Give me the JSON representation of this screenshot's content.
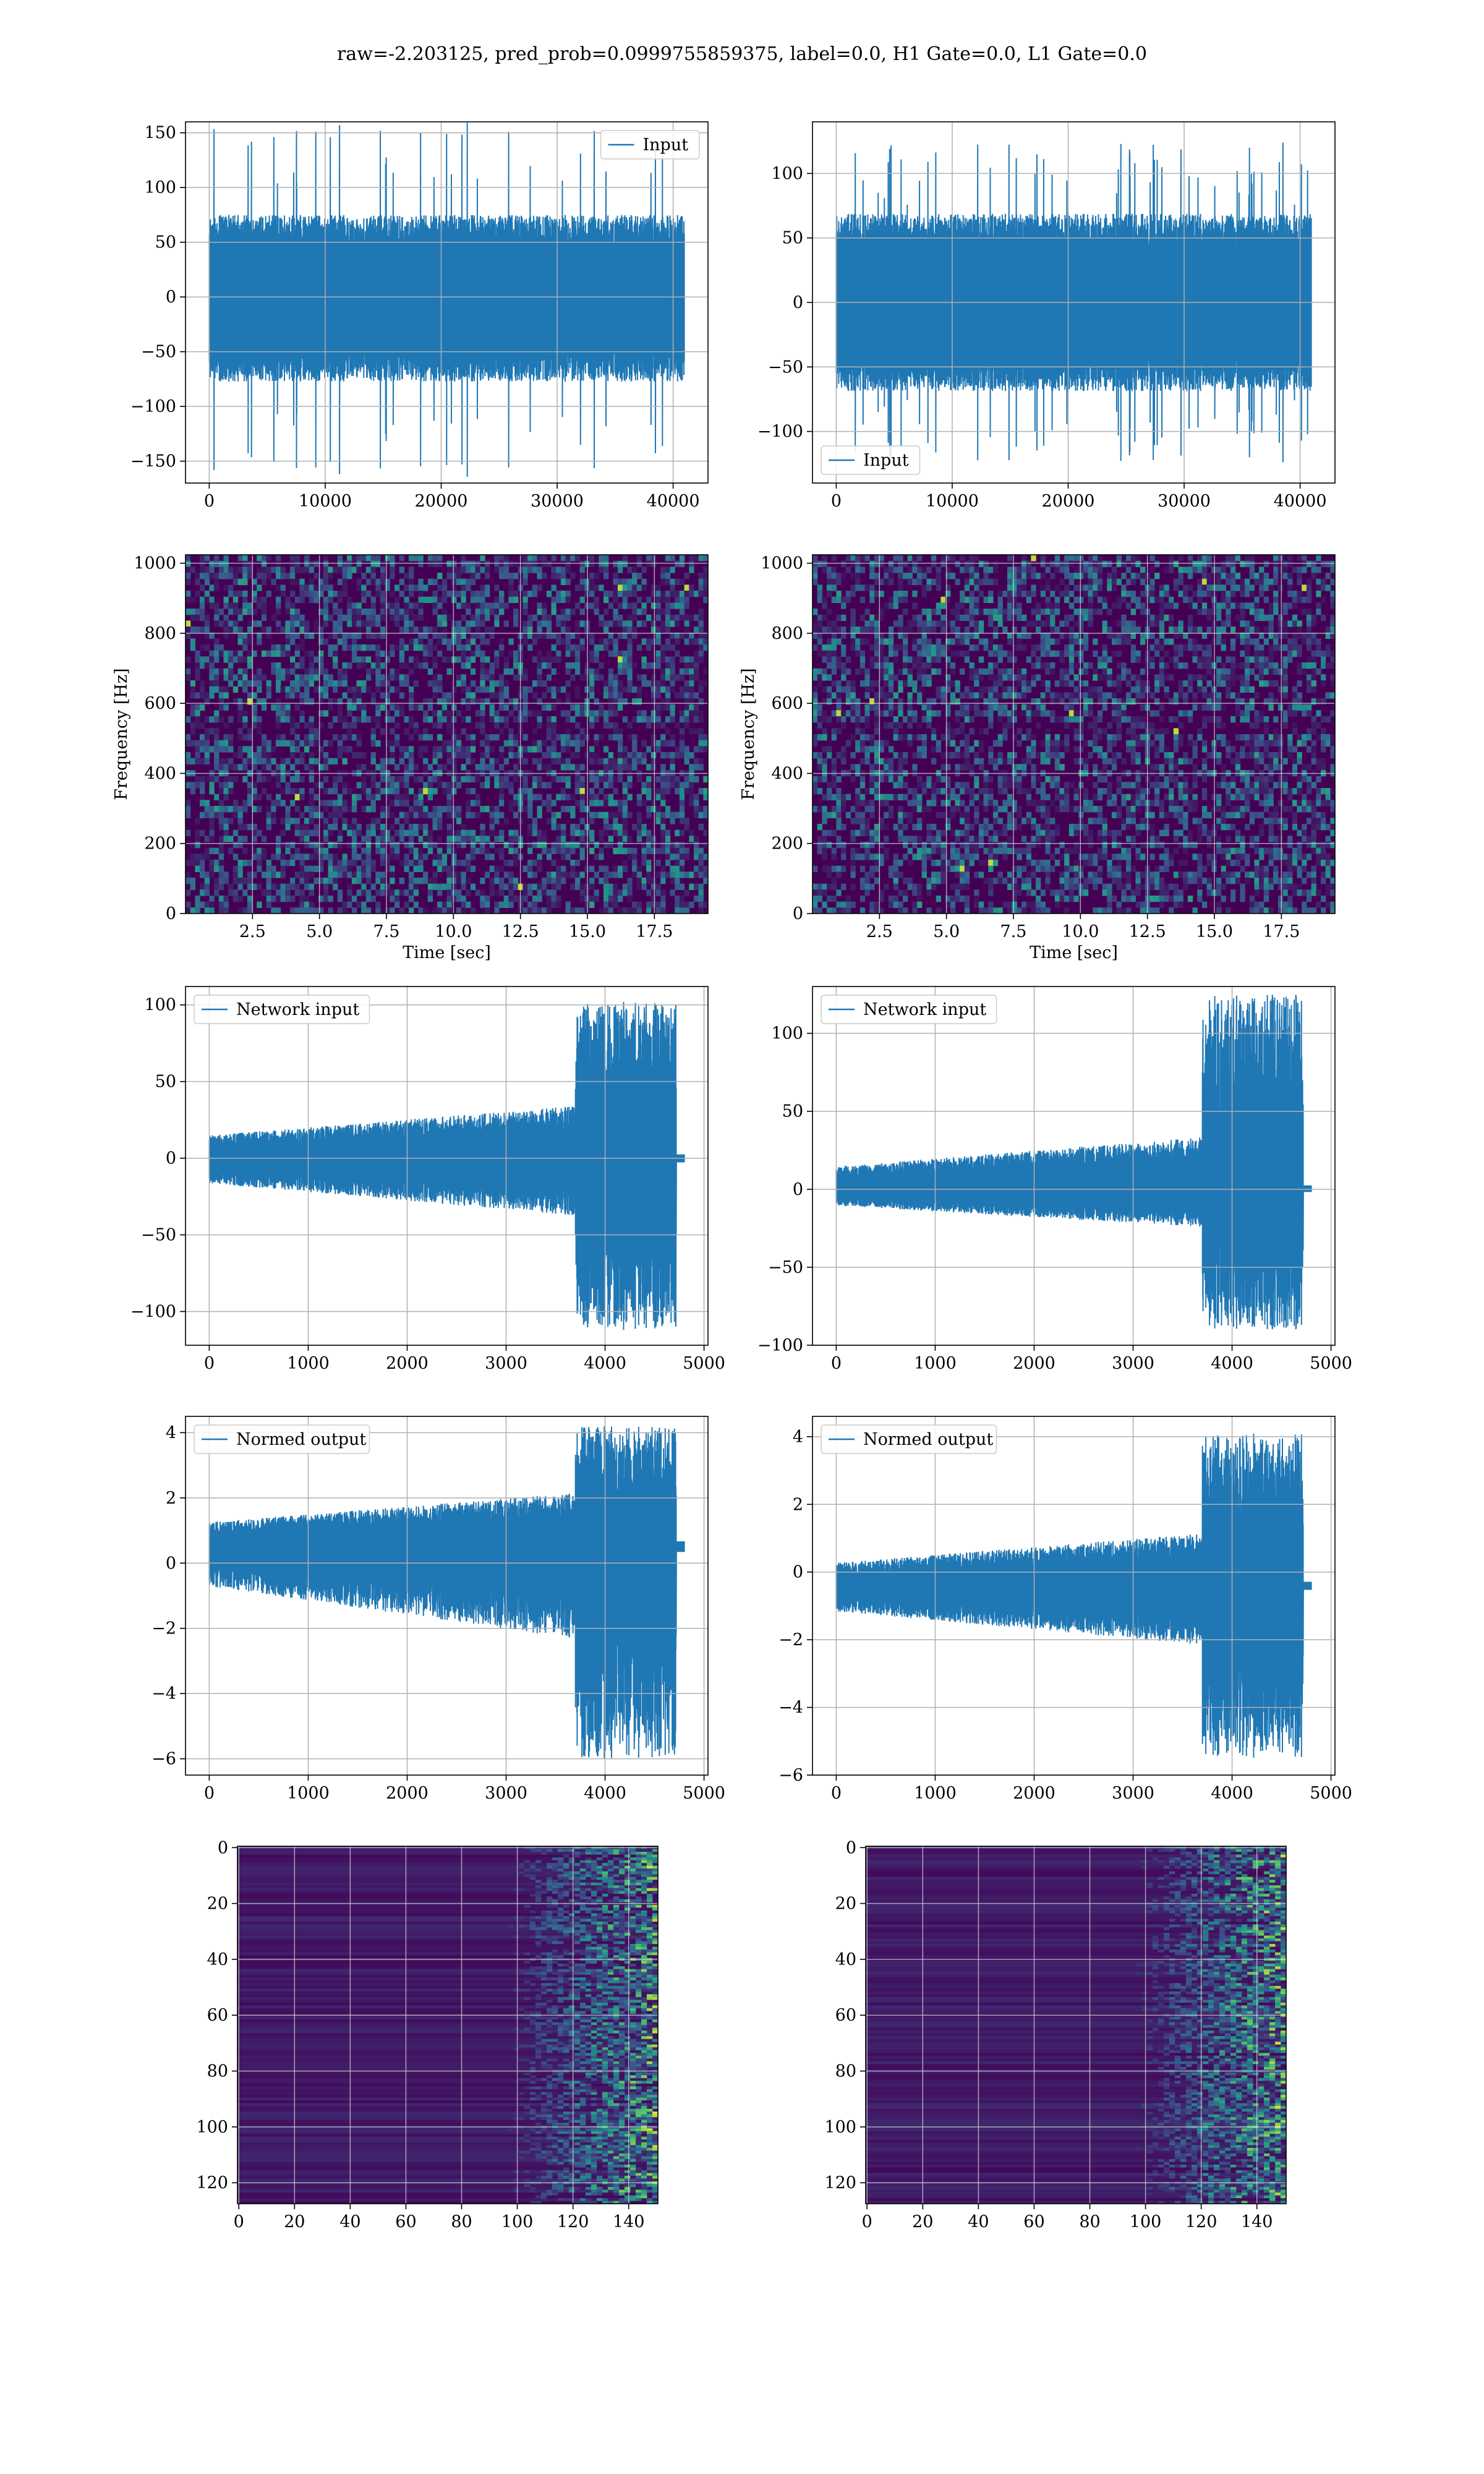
{
  "figure": {
    "suptitle": "raw=-2.203125, pred_prob=0.0999755859375, label=0.0, H1 Gate=0.0, L1 Gate=0.0"
  },
  "colors": {
    "line": "#1f77b4",
    "grid": "#b0b0b0",
    "viridis_dark": "#440154",
    "viridis_mid": "#21918c",
    "viridis_bright": "#fde725"
  },
  "chart_data": [
    {
      "id": "input-left",
      "type": "line",
      "legend": "Input",
      "legend_loc": "upper right",
      "xlim": [
        -2048,
        43008
      ],
      "ylim": [
        -170,
        160
      ],
      "xticks": [
        0,
        10000,
        20000,
        30000,
        40000
      ],
      "xticklabels": [
        "0",
        "10000",
        "20000",
        "30000",
        "40000"
      ],
      "yticks": [
        -150,
        -100,
        -50,
        0,
        50,
        100,
        150
      ],
      "yticklabels": [
        "−150",
        "−100",
        "−50",
        "0",
        "50",
        "100",
        "150"
      ],
      "xlabel": "",
      "ylabel": "",
      "series": [
        {
          "x_range": [
            0,
            40960
          ],
          "envelope": [
            -60,
            60
          ],
          "peaks_max": 160,
          "peaks_min": -165
        }
      ]
    },
    {
      "id": "input-right",
      "type": "line",
      "legend": "Input",
      "legend_loc": "lower left",
      "xlim": [
        -2048,
        43008
      ],
      "ylim": [
        -140,
        140
      ],
      "xticks": [
        0,
        10000,
        20000,
        30000,
        40000
      ],
      "xticklabels": [
        "0",
        "10000",
        "20000",
        "30000",
        "40000"
      ],
      "yticks": [
        -100,
        -50,
        0,
        50,
        100
      ],
      "yticklabels": [
        "−100",
        "−50",
        "0",
        "50",
        "100"
      ],
      "xlabel": "",
      "ylabel": "",
      "series": [
        {
          "x_range": [
            0,
            40960
          ],
          "envelope": [
            -55,
            55
          ],
          "peaks_max": 125,
          "peaks_min": -125
        }
      ]
    },
    {
      "id": "spectrogram-left",
      "type": "heatmap",
      "xlim": [
        0,
        19.5
      ],
      "ylim": [
        0,
        1024
      ],
      "xticks": [
        2.5,
        5.0,
        7.5,
        10.0,
        12.5,
        15.0,
        17.5
      ],
      "xticklabels": [
        "2.5",
        "5.0",
        "7.5",
        "10.0",
        "12.5",
        "15.0",
        "17.5"
      ],
      "yticks": [
        0,
        200,
        400,
        600,
        800,
        1000
      ],
      "yticklabels": [
        "0",
        "200",
        "400",
        "600",
        "800",
        "1000"
      ],
      "xlabel": "Time [sec]",
      "ylabel": "Frequency [Hz]",
      "colormap": "viridis"
    },
    {
      "id": "spectrogram-right",
      "type": "heatmap",
      "xlim": [
        0,
        19.5
      ],
      "ylim": [
        0,
        1024
      ],
      "xticks": [
        2.5,
        5.0,
        7.5,
        10.0,
        12.5,
        15.0,
        17.5
      ],
      "xticklabels": [
        "2.5",
        "5.0",
        "7.5",
        "10.0",
        "12.5",
        "15.0",
        "17.5"
      ],
      "yticks": [
        0,
        200,
        400,
        600,
        800,
        1000
      ],
      "yticklabels": [
        "0",
        "200",
        "400",
        "600",
        "800",
        "1000"
      ],
      "xlabel": "Time [sec]",
      "ylabel": "Frequency [Hz]",
      "colormap": "viridis"
    },
    {
      "id": "network-left",
      "type": "line",
      "legend": "Network input",
      "legend_loc": "upper left",
      "xlim": [
        -240,
        5040
      ],
      "ylim": [
        -122,
        112
      ],
      "xticks": [
        0,
        1000,
        2000,
        3000,
        4000,
        5000
      ],
      "xticklabels": [
        "0",
        "1000",
        "2000",
        "3000",
        "4000",
        "5000"
      ],
      "yticks": [
        -100,
        -50,
        0,
        50,
        100
      ],
      "yticklabels": [
        "−100",
        "−50",
        "0",
        "50",
        "100"
      ],
      "xlabel": "",
      "ylabel": "",
      "series": [
        {
          "x_range": [
            0,
            4800
          ],
          "baseline": 0,
          "chirp_start": 3700,
          "chirp_end": 4720,
          "peaks_max": 102,
          "peaks_min": -112
        }
      ]
    },
    {
      "id": "network-right",
      "type": "line",
      "legend": "Network input",
      "legend_loc": "upper left",
      "xlim": [
        -240,
        5040
      ],
      "ylim": [
        -100,
        130
      ],
      "xticks": [
        0,
        1000,
        2000,
        3000,
        4000,
        5000
      ],
      "xticklabels": [
        "0",
        "1000",
        "2000",
        "3000",
        "4000",
        "5000"
      ],
      "yticks": [
        -100,
        -50,
        0,
        50,
        100
      ],
      "yticklabels": [
        "−100",
        "−50",
        "0",
        "50",
        "100"
      ],
      "xlabel": "",
      "ylabel": "",
      "series": [
        {
          "x_range": [
            0,
            4800
          ],
          "baseline": 0,
          "chirp_start": 3700,
          "chirp_end": 4720,
          "peaks_max": 125,
          "peaks_min": -90
        }
      ]
    },
    {
      "id": "normed-left",
      "type": "line",
      "legend": "Normed output",
      "legend_loc": "upper left",
      "xlim": [
        -240,
        5040
      ],
      "ylim": [
        -6.5,
        4.5
      ],
      "xticks": [
        0,
        1000,
        2000,
        3000,
        4000,
        5000
      ],
      "xticklabels": [
        "0",
        "1000",
        "2000",
        "3000",
        "4000",
        "5000"
      ],
      "yticks": [
        -6,
        -4,
        -2,
        0,
        2,
        4
      ],
      "yticklabels": [
        "−6",
        "−4",
        "−2",
        "0",
        "2",
        "4"
      ],
      "xlabel": "",
      "ylabel": "",
      "series": [
        {
          "x_range": [
            0,
            4800
          ],
          "baseline": 0.55,
          "chirp_start": 3700,
          "chirp_end": 4720,
          "peaks_max": 4.2,
          "peaks_min": -6.0
        }
      ]
    },
    {
      "id": "normed-right",
      "type": "line",
      "legend": "Normed output",
      "legend_loc": "upper left",
      "xlim": [
        -240,
        5040
      ],
      "ylim": [
        -6,
        4.6
      ],
      "xticks": [
        0,
        1000,
        2000,
        3000,
        4000,
        5000
      ],
      "xticklabels": [
        "0",
        "1000",
        "2000",
        "3000",
        "4000",
        "5000"
      ],
      "yticks": [
        -6,
        -4,
        -2,
        0,
        2,
        4
      ],
      "yticklabels": [
        "−6",
        "−4",
        "−2",
        "0",
        "2",
        "4"
      ],
      "xlabel": "",
      "ylabel": "",
      "series": [
        {
          "x_range": [
            0,
            4800
          ],
          "baseline": -0.4,
          "chirp_start": 3700,
          "chirp_end": 4720,
          "peaks_max": 4.1,
          "peaks_min": -5.5
        }
      ]
    },
    {
      "id": "features-left",
      "type": "heatmap",
      "xlim": [
        -0.5,
        150.5
      ],
      "ylim": [
        127.5,
        -0.5
      ],
      "y_inverted": true,
      "xticks": [
        0,
        20,
        40,
        60,
        80,
        100,
        120,
        140
      ],
      "xticklabels": [
        "0",
        "20",
        "40",
        "60",
        "80",
        "100",
        "120",
        "140"
      ],
      "yticks": [
        0,
        20,
        40,
        60,
        80,
        100,
        120
      ],
      "yticklabels": [
        "0",
        "20",
        "40",
        "60",
        "80",
        "100",
        "120"
      ],
      "xlabel": "",
      "ylabel": "",
      "colormap": "viridis"
    },
    {
      "id": "features-right",
      "type": "heatmap",
      "xlim": [
        -0.5,
        150.5
      ],
      "ylim": [
        127.5,
        -0.5
      ],
      "y_inverted": true,
      "xticks": [
        0,
        20,
        40,
        60,
        80,
        100,
        120,
        140
      ],
      "xticklabels": [
        "0",
        "20",
        "40",
        "60",
        "80",
        "100",
        "120",
        "140"
      ],
      "yticks": [
        0,
        20,
        40,
        60,
        80,
        100,
        120
      ],
      "yticklabels": [
        "0",
        "20",
        "40",
        "60",
        "80",
        "100",
        "120"
      ],
      "xlabel": "",
      "ylabel": "",
      "colormap": "viridis"
    }
  ]
}
